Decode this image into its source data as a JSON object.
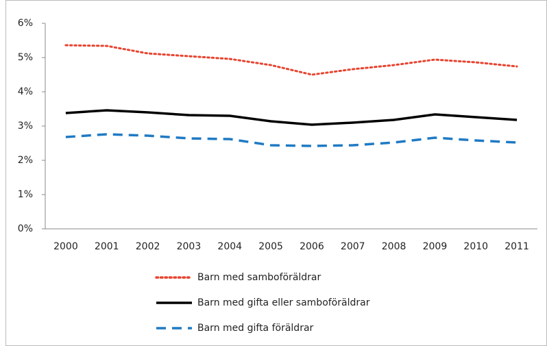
{
  "chart_data": {
    "type": "line",
    "categories": [
      "2000",
      "2001",
      "2002",
      "2003",
      "2004",
      "2005",
      "2006",
      "2007",
      "2008",
      "2009",
      "2010",
      "2011"
    ],
    "series": [
      {
        "name": "Barn med samboföräldrar",
        "color": "#e8432f",
        "style": "dotted",
        "values": [
          5.36,
          5.34,
          5.12,
          5.04,
          4.96,
          4.78,
          4.5,
          4.66,
          4.78,
          4.94,
          4.86,
          4.74
        ]
      },
      {
        "name": "Barn med gifta eller samboföräldrar",
        "color": "#000000",
        "style": "solid",
        "values": [
          3.38,
          3.46,
          3.4,
          3.32,
          3.3,
          3.14,
          3.04,
          3.1,
          3.18,
          3.34,
          3.26,
          3.18
        ]
      },
      {
        "name": "Barn med gifta föräldrar",
        "color": "#1f7ac4",
        "style": "dashed",
        "values": [
          2.68,
          2.76,
          2.72,
          2.64,
          2.62,
          2.44,
          2.42,
          2.44,
          2.52,
          2.66,
          2.58,
          2.52
        ]
      }
    ],
    "ylim": [
      0,
      6
    ],
    "yticks": [
      {
        "value": 0,
        "label": "0%"
      },
      {
        "value": 1,
        "label": "1%"
      },
      {
        "value": 2,
        "label": "2%"
      },
      {
        "value": 3,
        "label": "3%"
      },
      {
        "value": 4,
        "label": "4%"
      },
      {
        "value": 5,
        "label": "5%"
      },
      {
        "value": 6,
        "label": "6%"
      }
    ],
    "grid": false,
    "legend": "bottom"
  }
}
